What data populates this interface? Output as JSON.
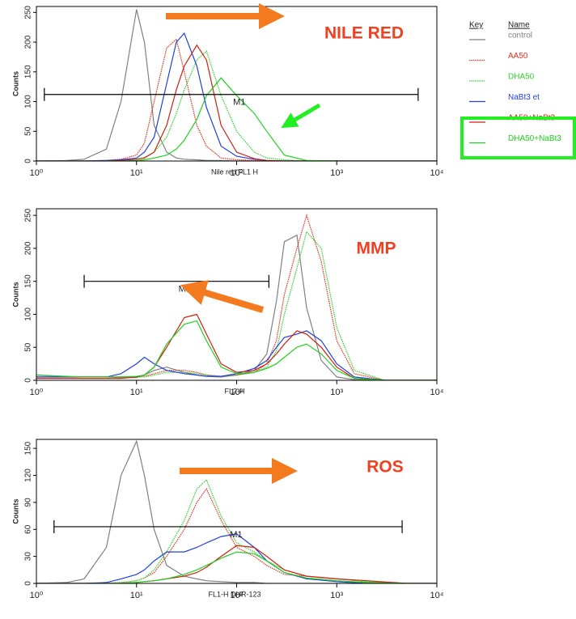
{
  "chart_data": [
    {
      "type": "line",
      "title": "NILE RED",
      "x_label": "Nile red FL1 H",
      "y_label": "Counts",
      "log_x": true,
      "xlim": [
        1,
        10000
      ],
      "xticks": [
        {
          "value": 1,
          "label": "10⁰"
        },
        {
          "value": 10,
          "label": "10¹"
        },
        {
          "value": 100,
          "label": "10²"
        },
        {
          "value": 1000,
          "label": "10³"
        },
        {
          "value": 10000,
          "label": "10⁴"
        }
      ],
      "ylim": [
        0,
        260
      ],
      "yticks": [
        0,
        50,
        100,
        150,
        200,
        250
      ],
      "legend": {
        "key_header": "Key",
        "name_header": "Name",
        "position": "right"
      },
      "gate": {
        "label": "M1",
        "start": 1.2,
        "end": 6500,
        "y": 112
      },
      "x": [
        1,
        2,
        3,
        5,
        7,
        10,
        12,
        15,
        20,
        25,
        30,
        40,
        50,
        70,
        100,
        150,
        200,
        300,
        500,
        1000,
        3000,
        10000
      ],
      "series": [
        {
          "name": "control",
          "color": "#808080",
          "style": "solid",
          "values": [
            0,
            1,
            3,
            20,
            100,
            255,
            200,
            60,
            15,
            5,
            3,
            2,
            1,
            1,
            0,
            0,
            0,
            0,
            0,
            0,
            0,
            0
          ]
        },
        {
          "name": "AA50",
          "color": "#e03020",
          "style": "dotted",
          "values": [
            0,
            0,
            0,
            1,
            3,
            10,
            30,
            100,
            190,
            205,
            150,
            60,
            25,
            5,
            2,
            1,
            0,
            0,
            0,
            0,
            0,
            0
          ]
        },
        {
          "name": "DHA50",
          "color": "#30d030",
          "style": "dotted",
          "values": [
            0,
            0,
            0,
            0,
            1,
            3,
            6,
            15,
            40,
            80,
            120,
            170,
            185,
            110,
            50,
            15,
            5,
            2,
            0,
            0,
            0,
            0
          ]
        },
        {
          "name": "NaBt3 et",
          "color": "#2040e0",
          "style": "solid",
          "values": [
            0,
            0,
            0,
            1,
            2,
            5,
            15,
            40,
            130,
            200,
            215,
            160,
            90,
            25,
            8,
            3,
            1,
            0,
            0,
            0,
            0,
            0
          ]
        },
        {
          "name": "AA50+NaBt3",
          "color": "#d02010",
          "style": "solid",
          "values": [
            0,
            0,
            0,
            0,
            1,
            3,
            5,
            15,
            60,
            120,
            160,
            195,
            170,
            60,
            15,
            4,
            1,
            0,
            0,
            0,
            0,
            0
          ]
        },
        {
          "name": "DHA50+NaBt3",
          "color": "#20d020",
          "style": "solid",
          "values": [
            0,
            0,
            0,
            0,
            0,
            1,
            2,
            5,
            10,
            20,
            35,
            70,
            110,
            140,
            110,
            80,
            50,
            10,
            1,
            0,
            0,
            0
          ]
        }
      ]
    },
    {
      "type": "line",
      "title": "MMP",
      "x_label": "FL2-H",
      "y_label": "Counts",
      "log_x": true,
      "xlim": [
        1,
        10000
      ],
      "xticks": [
        {
          "value": 1,
          "label": "10⁰"
        },
        {
          "value": 10,
          "label": "10¹"
        },
        {
          "value": 100,
          "label": "10²"
        },
        {
          "value": 1000,
          "label": "10³"
        },
        {
          "value": 10000,
          "label": "10⁴"
        }
      ],
      "ylim": [
        0,
        260
      ],
      "yticks": [
        0,
        50,
        100,
        150,
        200,
        250
      ],
      "gate": {
        "label": "M1",
        "start": 3,
        "end": 210,
        "y": 150
      },
      "x": [
        1,
        2,
        3,
        5,
        7,
        10,
        12,
        15,
        20,
        30,
        40,
        50,
        70,
        100,
        150,
        200,
        250,
        300,
        400,
        500,
        700,
        1000,
        1500,
        3000,
        10000
      ],
      "series": [
        {
          "color": "#808080",
          "style": "solid",
          "values": [
            8,
            5,
            5,
            5,
            4,
            4,
            8,
            15,
            20,
            12,
            8,
            6,
            5,
            8,
            15,
            40,
            120,
            210,
            220,
            110,
            30,
            5,
            1,
            0,
            0
          ]
        },
        {
          "color": "#e03020",
          "style": "dotted",
          "values": [
            5,
            5,
            5,
            5,
            5,
            5,
            6,
            10,
            15,
            15,
            12,
            8,
            6,
            8,
            12,
            25,
            60,
            130,
            200,
            250,
            180,
            60,
            10,
            0,
            0
          ]
        },
        {
          "color": "#30d030",
          "style": "dotted",
          "values": [
            5,
            5,
            5,
            5,
            5,
            5,
            5,
            8,
            12,
            12,
            10,
            8,
            6,
            8,
            12,
            20,
            45,
            100,
            170,
            225,
            200,
            80,
            15,
            0,
            0
          ]
        },
        {
          "color": "#2040e0",
          "style": "solid",
          "values": [
            5,
            5,
            5,
            5,
            10,
            25,
            35,
            25,
            15,
            10,
            8,
            6,
            6,
            10,
            18,
            30,
            50,
            65,
            70,
            75,
            60,
            25,
            5,
            0,
            0
          ]
        },
        {
          "color": "#d02010",
          "style": "solid",
          "values": [
            3,
            3,
            3,
            3,
            3,
            5,
            8,
            20,
            50,
            95,
            100,
            70,
            25,
            12,
            15,
            25,
            40,
            55,
            75,
            70,
            50,
            20,
            3,
            0,
            0
          ]
        },
        {
          "color": "#20d020",
          "style": "solid",
          "values": [
            8,
            6,
            5,
            5,
            5,
            6,
            8,
            20,
            55,
            85,
            90,
            60,
            20,
            10,
            12,
            18,
            25,
            35,
            50,
            55,
            40,
            15,
            3,
            0,
            0
          ]
        }
      ]
    },
    {
      "type": "line",
      "title": "ROS",
      "x_label": "FL1-H  DHR-123",
      "y_label": "Counts",
      "log_x": true,
      "xlim": [
        1,
        10000
      ],
      "xticks": [
        {
          "value": 1,
          "label": "10⁰"
        },
        {
          "value": 10,
          "label": "10¹"
        },
        {
          "value": 100,
          "label": "10²"
        },
        {
          "value": 1000,
          "label": "10³"
        },
        {
          "value": 10000,
          "label": "10⁴"
        }
      ],
      "ylim": [
        0,
        160
      ],
      "yticks": [
        0,
        30,
        60,
        90,
        120,
        150
      ],
      "gate": {
        "label": "M1",
        "start": 1.5,
        "end": 4500,
        "y": 63
      },
      "x": [
        1,
        2,
        3,
        5,
        7,
        10,
        12,
        15,
        20,
        30,
        40,
        50,
        70,
        100,
        150,
        200,
        300,
        500,
        1000,
        2000,
        5000,
        10000
      ],
      "series": [
        {
          "color": "#808080",
          "style": "solid",
          "values": [
            0,
            1,
            5,
            40,
            120,
            158,
            120,
            60,
            20,
            8,
            5,
            3,
            2,
            1,
            1,
            0,
            0,
            0,
            0,
            0,
            0,
            0
          ]
        },
        {
          "color": "#e03020",
          "style": "dotted",
          "values": [
            0,
            0,
            0,
            0,
            1,
            3,
            6,
            12,
            30,
            60,
            90,
            105,
            70,
            40,
            30,
            20,
            10,
            8,
            5,
            2,
            0,
            0
          ]
        },
        {
          "color": "#30d030",
          "style": "dotted",
          "values": [
            0,
            0,
            0,
            0,
            1,
            3,
            6,
            15,
            35,
            70,
            105,
            115,
            75,
            45,
            35,
            25,
            15,
            8,
            5,
            2,
            0,
            0
          ]
        },
        {
          "color": "#2040e0",
          "style": "solid",
          "values": [
            0,
            0,
            0,
            1,
            5,
            10,
            15,
            25,
            35,
            35,
            40,
            45,
            52,
            55,
            40,
            25,
            12,
            5,
            2,
            0,
            0,
            0
          ]
        },
        {
          "color": "#d02010",
          "style": "solid",
          "values": [
            0,
            0,
            0,
            0,
            0,
            1,
            2,
            3,
            5,
            8,
            12,
            18,
            30,
            42,
            40,
            30,
            15,
            8,
            5,
            3,
            0,
            0
          ]
        },
        {
          "color": "#20d020",
          "style": "solid",
          "values": [
            0,
            0,
            0,
            0,
            0,
            1,
            2,
            3,
            5,
            10,
            15,
            20,
            28,
            35,
            33,
            25,
            12,
            6,
            3,
            1,
            0,
            0
          ]
        }
      ]
    }
  ]
}
